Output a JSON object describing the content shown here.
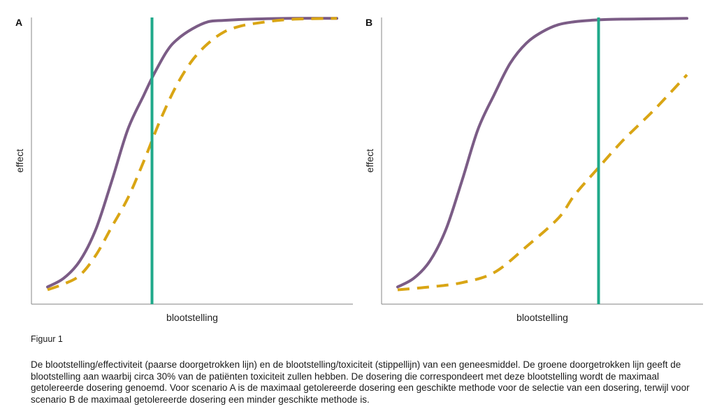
{
  "figure_label": "Figuur 1",
  "caption": "De blootstelling/effectiviteit (paarse doorgetrokken lijn) en de blootstelling/toxiciteit (stippellijn) van een geneesmiddel. De groene doorgetrokken lijn geeft de blootstelling aan waarbij circa 30% van de patiënten toxiciteit zullen hebben. De dosering die correspondeert met deze blootstelling wordt de maximaal getolereerde dosering genoemd. Voor scenario A is de maximaal getolereerde dosering een geschikte methode voor de selectie van een dosering, terwijl voor scenario B de maximaal getolereerde dosering een minder geschikte methode is.",
  "colors": {
    "efficacy": "#7b5c86",
    "toxicity": "#d9a514",
    "mtd": "#1fa98a",
    "axis": "#9a9a9a"
  },
  "chart_data": [
    {
      "type": "line",
      "panel": "A",
      "xlabel": "blootstelling",
      "ylabel": "effect",
      "xlim": [
        0,
        1
      ],
      "ylim": [
        0,
        1
      ],
      "grid": false,
      "series": [
        {
          "style": "solid",
          "color": "#7b5c86",
          "x": [
            0.05,
            0.1,
            0.15,
            0.2,
            0.25,
            0.3,
            0.35,
            0.38,
            0.42,
            0.45,
            0.5,
            0.55,
            0.6,
            0.7,
            0.8,
            0.95
          ],
          "y": [
            0.06,
            0.09,
            0.15,
            0.26,
            0.43,
            0.61,
            0.73,
            0.8,
            0.88,
            0.92,
            0.96,
            0.985,
            0.99,
            0.995,
            0.997,
            0.997
          ]
        },
        {
          "style": "dashed",
          "color": "#d9a514",
          "x": [
            0.05,
            0.1,
            0.15,
            0.2,
            0.25,
            0.3,
            0.35,
            0.4,
            0.45,
            0.5,
            0.55,
            0.6,
            0.65,
            0.7,
            0.8,
            0.95
          ],
          "y": [
            0.05,
            0.07,
            0.1,
            0.17,
            0.27,
            0.37,
            0.5,
            0.64,
            0.76,
            0.85,
            0.91,
            0.95,
            0.97,
            0.98,
            0.993,
            0.997
          ]
        }
      ],
      "vline": {
        "x": 0.375,
        "color": "#1fa98a"
      }
    },
    {
      "type": "line",
      "panel": "B",
      "xlabel": "blootstelling",
      "ylabel": "effect",
      "xlim": [
        0,
        1
      ],
      "ylim": [
        0,
        1
      ],
      "grid": false,
      "series": [
        {
          "style": "solid",
          "color": "#7b5c86",
          "x": [
            0.05,
            0.1,
            0.15,
            0.2,
            0.25,
            0.3,
            0.35,
            0.4,
            0.45,
            0.5,
            0.55,
            0.6,
            0.65,
            0.7,
            0.8,
            0.95
          ],
          "y": [
            0.06,
            0.09,
            0.15,
            0.26,
            0.43,
            0.61,
            0.73,
            0.84,
            0.91,
            0.95,
            0.975,
            0.985,
            0.99,
            0.993,
            0.995,
            0.997
          ]
        },
        {
          "style": "dashed",
          "color": "#d9a514",
          "x": [
            0.05,
            0.15,
            0.25,
            0.35,
            0.45,
            0.55,
            0.6,
            0.67,
            0.75,
            0.85,
            0.95
          ],
          "y": [
            0.05,
            0.06,
            0.075,
            0.11,
            0.2,
            0.3,
            0.38,
            0.47,
            0.57,
            0.68,
            0.8
          ]
        }
      ],
      "vline": {
        "x": 0.675,
        "color": "#1fa98a"
      }
    }
  ]
}
